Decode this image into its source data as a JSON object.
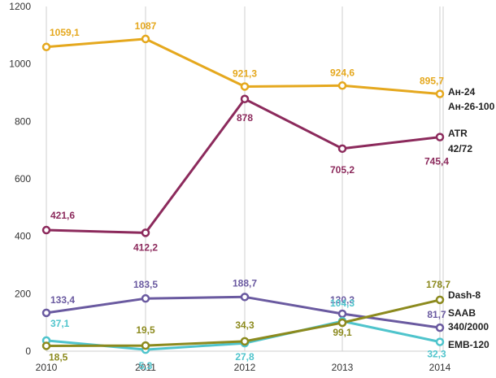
{
  "chart_data": {
    "type": "line",
    "title": "",
    "xlabel": "",
    "ylabel": "",
    "x": [
      "2010",
      "2011",
      "2012",
      "2013",
      "2014"
    ],
    "ylim": [
      0,
      1200
    ],
    "yticks": [
      "0",
      "200",
      "400",
      "600",
      "800",
      "1000",
      "1200"
    ],
    "grid": "vertical",
    "series": [
      {
        "label_lines": [
          "Ан-24",
          "Ан-26-100"
        ],
        "color": "#e5a81e",
        "values": [
          1059.1,
          1087,
          921.3,
          924.6,
          895.7
        ],
        "labels": [
          "1059,1",
          "1087",
          "921,3",
          "924,6",
          "895,7"
        ]
      },
      {
        "label_lines": [
          "ATR",
          "42/72"
        ],
        "color": "#8c2a5c",
        "values": [
          421.6,
          412.2,
          878,
          705.2,
          745.4
        ],
        "labels": [
          "421,6",
          "412,2",
          "878",
          "705,2",
          "745,4"
        ]
      },
      {
        "label_lines": [
          "SAAB",
          "340/2000"
        ],
        "color": "#6a5aa0",
        "values": [
          133.4,
          183.5,
          188.7,
          130.3,
          81.7
        ],
        "labels": [
          "133,4",
          "183,5",
          "188,7",
          "130,3",
          "81,7"
        ]
      },
      {
        "label_lines": [
          "EMB-120"
        ],
        "color": "#4fc4cc",
        "values": [
          37.1,
          5.3,
          27.8,
          104.3,
          32.3
        ],
        "labels": [
          "37,1",
          "5,3",
          "27,8",
          "104,3",
          "32,3"
        ]
      },
      {
        "label_lines": [
          "Dash-8"
        ],
        "color": "#8c8a1e",
        "values": [
          18.5,
          19.5,
          34.3,
          99.1,
          178.7
        ],
        "labels": [
          "18,5",
          "19,5",
          "34,3",
          "99,1",
          "178,7"
        ]
      }
    ]
  }
}
